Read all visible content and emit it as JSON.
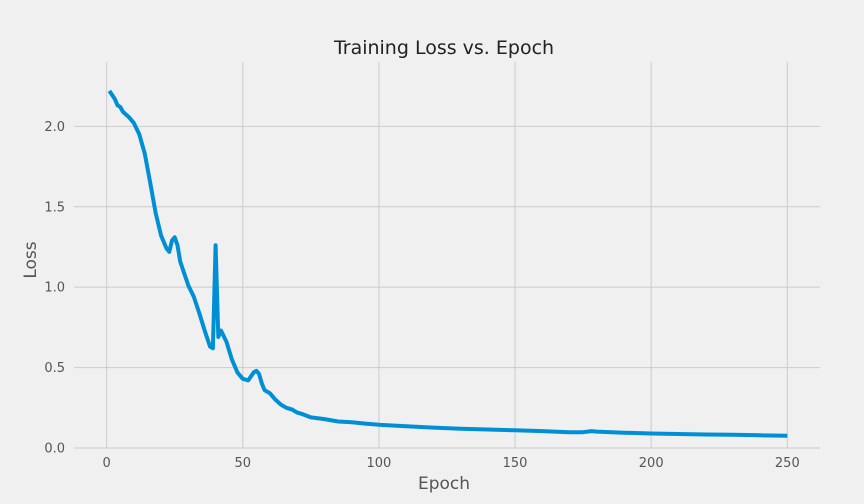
{
  "chart_data": {
    "type": "line",
    "title": "Training Loss vs. Epoch",
    "xlabel": "Epoch",
    "ylabel": "Loss",
    "xlim": [
      -12,
      262
    ],
    "ylim": [
      0,
      2.4
    ],
    "xticks": [
      0,
      50,
      100,
      150,
      200,
      250
    ],
    "yticks": [
      0.0,
      0.5,
      1.0,
      1.5,
      2.0
    ],
    "grid": true,
    "colors": {
      "background": "#f0f0f0",
      "grid": "#cbcbcb",
      "line": "#008fd5"
    },
    "series": [
      {
        "x": [
          1,
          3,
          4,
          5,
          6,
          8,
          10,
          12,
          14,
          16,
          18,
          20,
          22,
          23,
          24,
          25,
          26,
          27,
          28,
          30,
          32,
          34,
          36,
          38,
          39,
          40,
          41,
          42,
          44,
          46,
          48,
          50,
          52,
          54,
          55,
          56,
          57,
          58,
          60,
          62,
          64,
          66,
          68,
          70,
          72,
          75,
          80,
          85,
          90,
          95,
          100,
          110,
          120,
          130,
          140,
          150,
          160,
          170,
          175,
          178,
          180,
          190,
          200,
          210,
          220,
          230,
          240,
          250
        ],
        "y": [
          2.22,
          2.17,
          2.13,
          2.12,
          2.09,
          2.06,
          2.02,
          1.95,
          1.83,
          1.65,
          1.46,
          1.32,
          1.24,
          1.22,
          1.29,
          1.31,
          1.26,
          1.16,
          1.11,
          1.01,
          0.94,
          0.84,
          0.73,
          0.63,
          0.62,
          1.26,
          0.69,
          0.73,
          0.66,
          0.55,
          0.47,
          0.43,
          0.42,
          0.47,
          0.48,
          0.46,
          0.4,
          0.36,
          0.34,
          0.3,
          0.27,
          0.25,
          0.24,
          0.22,
          0.21,
          0.19,
          0.18,
          0.165,
          0.16,
          0.152,
          0.145,
          0.135,
          0.127,
          0.12,
          0.115,
          0.11,
          0.105,
          0.098,
          0.098,
          0.105,
          0.102,
          0.095,
          0.09,
          0.087,
          0.084,
          0.082,
          0.079,
          0.076
        ]
      }
    ]
  }
}
